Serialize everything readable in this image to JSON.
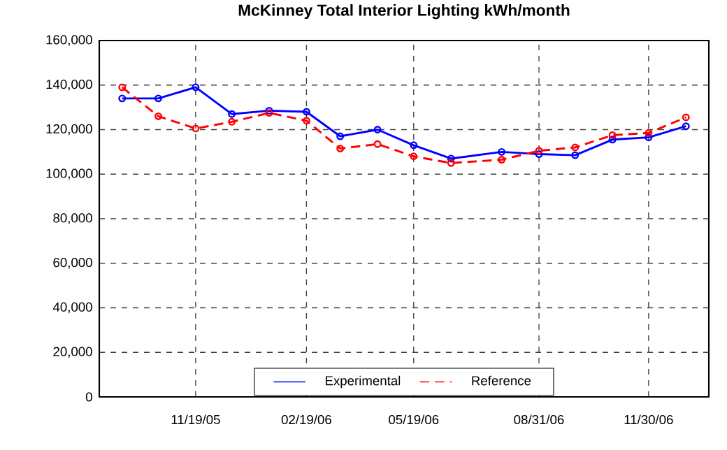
{
  "chart_data": {
    "type": "line",
    "title": "McKinney Total Interior Lighting kWh/month",
    "x": [
      "2005-09-19",
      "2005-10-19",
      "2005-11-19",
      "2005-12-19",
      "2006-01-19",
      "2006-02-19",
      "2006-03-19",
      "2006-04-19",
      "2006-05-19",
      "2006-06-19",
      "2006-07-31",
      "2006-08-31",
      "2006-09-30",
      "2006-10-31",
      "2006-11-30",
      "2006-12-31"
    ],
    "series": [
      {
        "name": "Experimental",
        "color": "#0000ff",
        "line_style": "solid",
        "values": [
          134000,
          134000,
          139000,
          127000,
          128500,
          128000,
          117000,
          120000,
          113000,
          107000,
          110000,
          109000,
          108500,
          115500,
          116500,
          121500
        ]
      },
      {
        "name": "Reference",
        "color": "#ff0000",
        "line_style": "dashed",
        "values": [
          139000,
          126000,
          120500,
          123500,
          127500,
          124000,
          111500,
          113500,
          108000,
          105000,
          106500,
          110500,
          112000,
          117500,
          118500,
          125500
        ]
      }
    ],
    "xlim": [
      "2005-08-31",
      "2007-01-19"
    ],
    "xticks": [
      {
        "value": "2005-11-19",
        "label": "11/19/05"
      },
      {
        "value": "2006-02-19",
        "label": "02/19/06"
      },
      {
        "value": "2006-05-19",
        "label": "05/19/06"
      },
      {
        "value": "2006-08-31",
        "label": "08/31/06"
      },
      {
        "value": "2006-11-30",
        "label": "11/30/06"
      }
    ],
    "ylim": [
      0,
      160000
    ],
    "yticks": [
      0,
      {
        "value": 20000,
        "label": "20,000"
      },
      {
        "value": 40000,
        "label": "40,000"
      },
      {
        "value": 60000,
        "label": "60,000"
      },
      {
        "value": 80000,
        "label": "80,000"
      },
      {
        "value": 100000,
        "label": "100,000"
      },
      {
        "value": 120000,
        "label": "120,000"
      },
      {
        "value": 140000,
        "label": "140,000"
      },
      {
        "value": 160000,
        "label": "160,000"
      }
    ],
    "grid": true,
    "legend": "bottom",
    "marker": "circle"
  }
}
